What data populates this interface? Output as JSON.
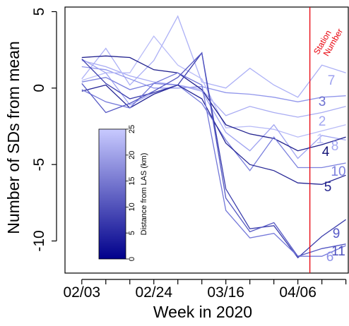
{
  "chart_data": {
    "type": "line",
    "xlabel": "Week in 2020",
    "ylabel": "Number of SDs from mean",
    "x_tick_labels": [
      "02/03",
      "02/24",
      "03/16",
      "04/06"
    ],
    "x_tick_weeks": [
      0,
      3,
      6,
      9
    ],
    "xlim": [
      -0.7,
      11.1
    ],
    "y_ticks": [
      5,
      0,
      -5,
      -10
    ],
    "y_tick_labels": [
      "5",
      "0",
      "-5",
      "-10"
    ],
    "ylim": [
      -12.1,
      5.3
    ],
    "grid": false,
    "series": [
      {
        "name": "7",
        "distance": 25,
        "color": "#adb1f6",
        "values": [
          0.6,
          2.6,
          0.2,
          1.8,
          4.7,
          0.4,
          0.0,
          1.3,
          0.2,
          -0.6,
          1.5,
          1.0
        ]
      },
      {
        "name": "3",
        "distance": 20,
        "color": "#9196eb",
        "values": [
          1.4,
          1.2,
          0.6,
          0.0,
          0.0,
          0.1,
          -0.3,
          -0.4,
          -0.6,
          -0.9,
          -0.6,
          -0.5
        ]
      },
      {
        "name": "2",
        "distance": 23,
        "color": "#a9acf3",
        "values": [
          1.8,
          1.4,
          0.8,
          0.4,
          0.2,
          -0.1,
          -1.8,
          -1.2,
          -1.6,
          -1.9,
          -1.6,
          -1.2
        ]
      },
      {
        "name": "1",
        "distance": 24,
        "color": "#b8bbf7",
        "values": [
          0.5,
          1.0,
          1.0,
          3.4,
          1.5,
          0.6,
          -2.6,
          -2.5,
          -2.7,
          -3.2,
          -2.8,
          -2.4
        ]
      },
      {
        "name": "8",
        "distance": 21,
        "color": "#a0a4f1",
        "values": [
          1.9,
          1.0,
          -1.1,
          -0.3,
          0.2,
          -0.2,
          -2.9,
          -4.1,
          -2.4,
          -4.6,
          -3.1,
          -3.4
        ]
      },
      {
        "name": "4",
        "distance": 3,
        "color": "#1e1e8c",
        "values": [
          2.0,
          2.1,
          2.0,
          1.2,
          1.0,
          -0.1,
          -2.4,
          -3.0,
          -3.3,
          -4.1,
          -3.7,
          -3.2
        ]
      },
      {
        "name": "10",
        "distance": 17,
        "color": "#7b80de",
        "values": [
          0.4,
          0.7,
          -0.1,
          0.3,
          0.2,
          -1.0,
          -3.4,
          -5.4,
          -3.2,
          -5.2,
          -5.2,
          -4.9
        ]
      },
      {
        "name": "5",
        "distance": 5,
        "color": "#262695",
        "values": [
          -0.2,
          0.2,
          -1.3,
          -0.4,
          0.2,
          -0.7,
          -3.6,
          -5.0,
          -5.4,
          -6.2,
          -6.3,
          -5.7
        ]
      },
      {
        "name": "9",
        "distance": 9,
        "color": "#3b3dac",
        "values": [
          1.9,
          0.3,
          -0.7,
          -0.3,
          0.2,
          2.3,
          -6.6,
          -9.2,
          -9.0,
          -11.1,
          -9.7,
          -8.6
        ]
      },
      {
        "name": "6",
        "distance": 15,
        "color": "#7377d9",
        "values": [
          -0.1,
          -0.9,
          -1.3,
          0.3,
          1.0,
          0.2,
          -8.0,
          -9.8,
          -9.5,
          -11.0,
          -11.0,
          -10.3
        ]
      },
      {
        "name": "11",
        "distance": 12,
        "color": "#5457c3",
        "values": [
          0.3,
          -1.6,
          -1.0,
          -0.2,
          0.7,
          2.3,
          -7.2,
          -9.4,
          -8.8,
          -11.0,
          -10.5,
          -10.2
        ]
      }
    ],
    "station_label_colors": {
      "7": "#9da1ef",
      "3": "#6c70d1",
      "2": "#a2a6f1",
      "1": "#c3c6fa",
      "8": "#a3a7f2",
      "4": "#141478",
      "10": "#7b7fde",
      "5": "#21218c",
      "9": "#5558c7",
      "6": "#8d91e8",
      "11": "#5053bf"
    },
    "annotation": {
      "line1": "Station",
      "line2": "Number",
      "color": "#e8000b",
      "x_week": 9.5
    },
    "colorbar": {
      "title": "Distance from LAS (km)",
      "ticks": [
        0,
        5,
        10,
        15,
        20,
        25
      ],
      "range": [
        0,
        25
      ],
      "color_low": "#00008b",
      "color_high": "#c8caff"
    }
  }
}
